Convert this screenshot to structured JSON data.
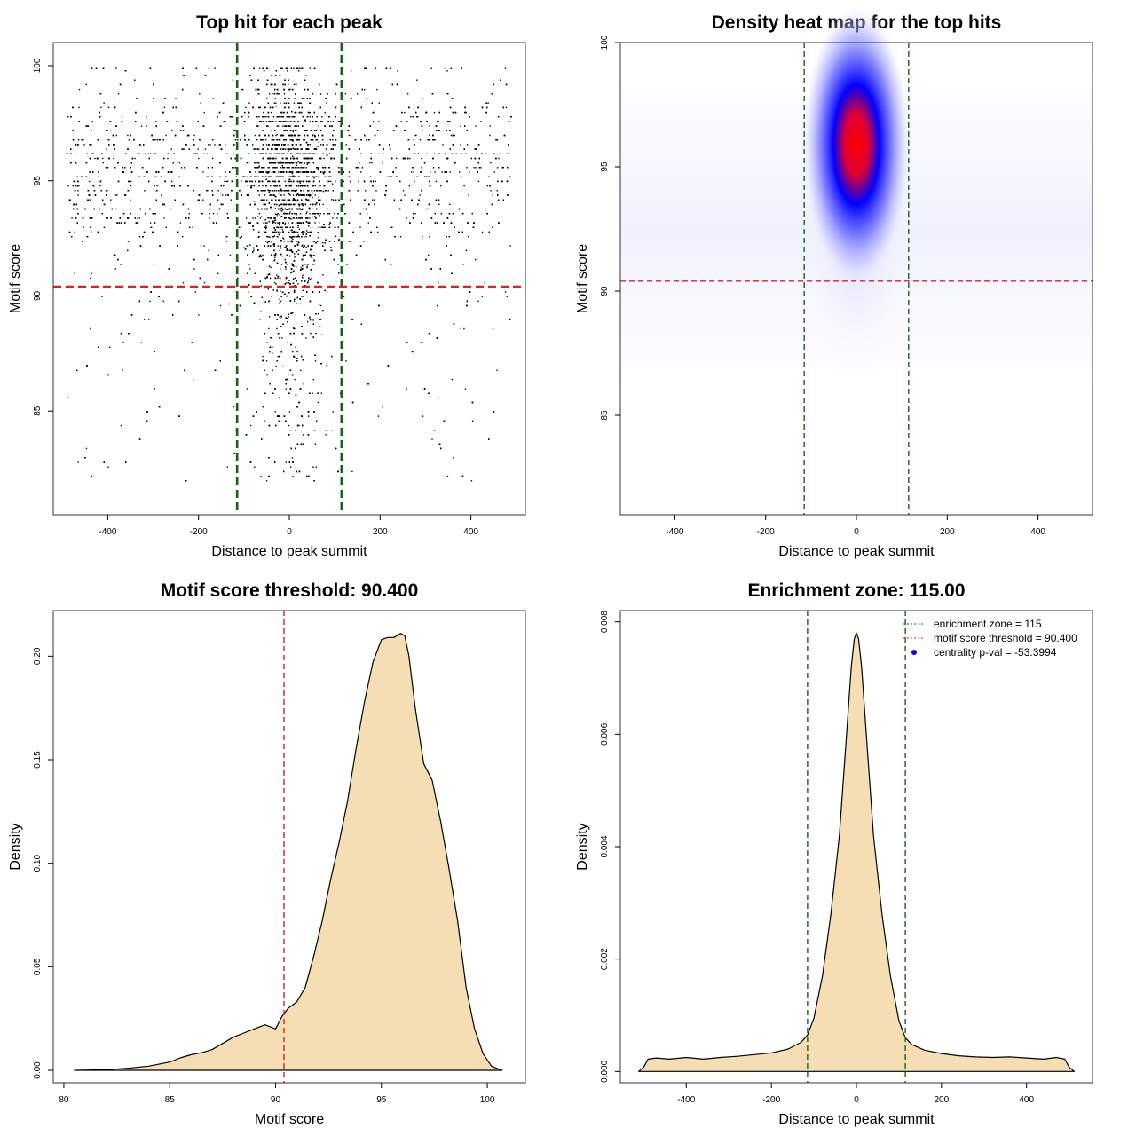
{
  "chart_data": [
    {
      "id": "scatter",
      "type": "scatter",
      "title": "Top hit for each peak",
      "xlabel": "Distance to peak summit",
      "ylabel": "Motif score",
      "xlim": [
        -520,
        520
      ],
      "ylim": [
        80.5,
        101.0
      ],
      "xticks": [
        -400,
        -200,
        0,
        200,
        400
      ],
      "yticks": [
        85,
        90,
        95,
        100
      ],
      "hlines": [
        {
          "y": 90.4,
          "color": "#dd2222",
          "style": "dashed"
        }
      ],
      "vlines": [
        {
          "x": -115,
          "color": "#116611",
          "style": "dashed"
        },
        {
          "x": 115,
          "color": "#116611",
          "style": "dashed"
        }
      ],
      "point_color": "#000000",
      "distribution": {
        "central_x_spread": 45,
        "central_y_mode": 95.5,
        "background_x_range": [
          -490,
          490
        ],
        "n_points": 9000
      }
    },
    {
      "id": "heatmap",
      "type": "heatmap",
      "title": "Density heat map for the top hits",
      "xlabel": "Distance to peak summit",
      "ylabel": "Motif score",
      "xlim": [
        -520,
        520
      ],
      "ylim": [
        81.0,
        100.0
      ],
      "xticks": [
        -400,
        -200,
        0,
        200,
        400
      ],
      "yticks": [
        85,
        90,
        95,
        100
      ],
      "hlines": [
        {
          "y": 90.4,
          "color": "#dd2222",
          "style": "dashed"
        }
      ],
      "vlines": [
        {
          "x": -115,
          "color": "#116611",
          "style": "dashed"
        },
        {
          "x": 115,
          "color": "#116611",
          "style": "dashed"
        }
      ],
      "hotspot": {
        "x": 0,
        "y": 95.9
      },
      "colors": [
        "#ffffff",
        "#0000ff",
        "#ff0000"
      ]
    },
    {
      "id": "score-density",
      "type": "area",
      "title": "Motif score threshold: 90.400",
      "xlabel": "Motif score",
      "ylabel": "Density",
      "xlim": [
        79.5,
        101.8
      ],
      "ylim": [
        -0.006,
        0.222
      ],
      "xticks": [
        80,
        85,
        90,
        95,
        100
      ],
      "yticks": [
        0.0,
        0.05,
        0.1,
        0.15,
        0.2
      ],
      "ytick_labels": [
        "0.00",
        "0.05",
        "0.10",
        "0.15",
        "0.20"
      ],
      "vlines": [
        {
          "x": 90.4,
          "color": "#cc2222",
          "style": "dashed"
        }
      ],
      "fill_color": "#f5deb3",
      "x": [
        80.5,
        82,
        83,
        84,
        85,
        85.5,
        86,
        86.5,
        87,
        87.5,
        88,
        88.5,
        89,
        89.5,
        90,
        90.3,
        90.6,
        91,
        91.4,
        91.8,
        92.2,
        92.6,
        93,
        93.4,
        93.8,
        94.2,
        94.6,
        95,
        95.3,
        95.6,
        95.9,
        96.1,
        96.3,
        96.6,
        97,
        97.4,
        97.8,
        98.2,
        98.6,
        99,
        99.4,
        99.8,
        100.2,
        100.7
      ],
      "y": [
        0.0,
        0.0003,
        0.001,
        0.002,
        0.004,
        0.006,
        0.0075,
        0.0085,
        0.01,
        0.013,
        0.016,
        0.018,
        0.02,
        0.022,
        0.02,
        0.026,
        0.03,
        0.033,
        0.04,
        0.055,
        0.072,
        0.092,
        0.11,
        0.13,
        0.155,
        0.178,
        0.197,
        0.208,
        0.209,
        0.209,
        0.211,
        0.21,
        0.2,
        0.175,
        0.148,
        0.14,
        0.12,
        0.097,
        0.072,
        0.04,
        0.02,
        0.008,
        0.002,
        0.0
      ]
    },
    {
      "id": "distance-density",
      "type": "area",
      "title": "Enrichment zone: 115.00",
      "xlabel": "Distance to peak summit",
      "ylabel": "Density",
      "xlim": [
        -555,
        555
      ],
      "ylim": [
        -0.0002,
        0.0082
      ],
      "xticks": [
        -400,
        -200,
        0,
        200,
        400
      ],
      "yticks": [
        0.0,
        0.002,
        0.004,
        0.006,
        0.008
      ],
      "ytick_labels": [
        "0.000",
        "0.002",
        "0.004",
        "0.006",
        "0.008"
      ],
      "vlines": [
        {
          "x": -115,
          "color": "#116611",
          "style": "dashed"
        },
        {
          "x": 115,
          "color": "#116611",
          "style": "dashed"
        }
      ],
      "fill_color": "#f5deb3",
      "x": [
        -512,
        -500,
        -490,
        -470,
        -440,
        -400,
        -360,
        -320,
        -280,
        -240,
        -200,
        -160,
        -130,
        -115,
        -100,
        -80,
        -60,
        -40,
        -25,
        -12,
        -5,
        0,
        5,
        12,
        25,
        40,
        60,
        80,
        100,
        115,
        130,
        160,
        200,
        240,
        280,
        320,
        360,
        400,
        440,
        470,
        490,
        500,
        512
      ],
      "y": [
        0.0,
        8e-05,
        0.00022,
        0.00024,
        0.00022,
        0.00025,
        0.00022,
        0.00025,
        0.00027,
        0.0003,
        0.00033,
        0.0004,
        0.00052,
        0.00065,
        0.00095,
        0.0017,
        0.0028,
        0.0042,
        0.0058,
        0.0072,
        0.0077,
        0.0078,
        0.0077,
        0.0072,
        0.0058,
        0.0042,
        0.0028,
        0.0017,
        0.0009,
        0.0006,
        0.00048,
        0.00038,
        0.00032,
        0.00028,
        0.00026,
        0.00025,
        0.00026,
        0.00024,
        0.00022,
        0.00025,
        0.00022,
        8e-05,
        0.0
      ],
      "legend": [
        {
          "label": "enrichment zone = 115",
          "color": "#116611",
          "kind": "line"
        },
        {
          "label": "motif score threshold = 90.400",
          "color": "#dd2222",
          "kind": "line"
        },
        {
          "label": "centrality p-val = -53.3994",
          "color": "#0000ff",
          "kind": "point"
        }
      ],
      "legend_position": "top-right"
    }
  ]
}
